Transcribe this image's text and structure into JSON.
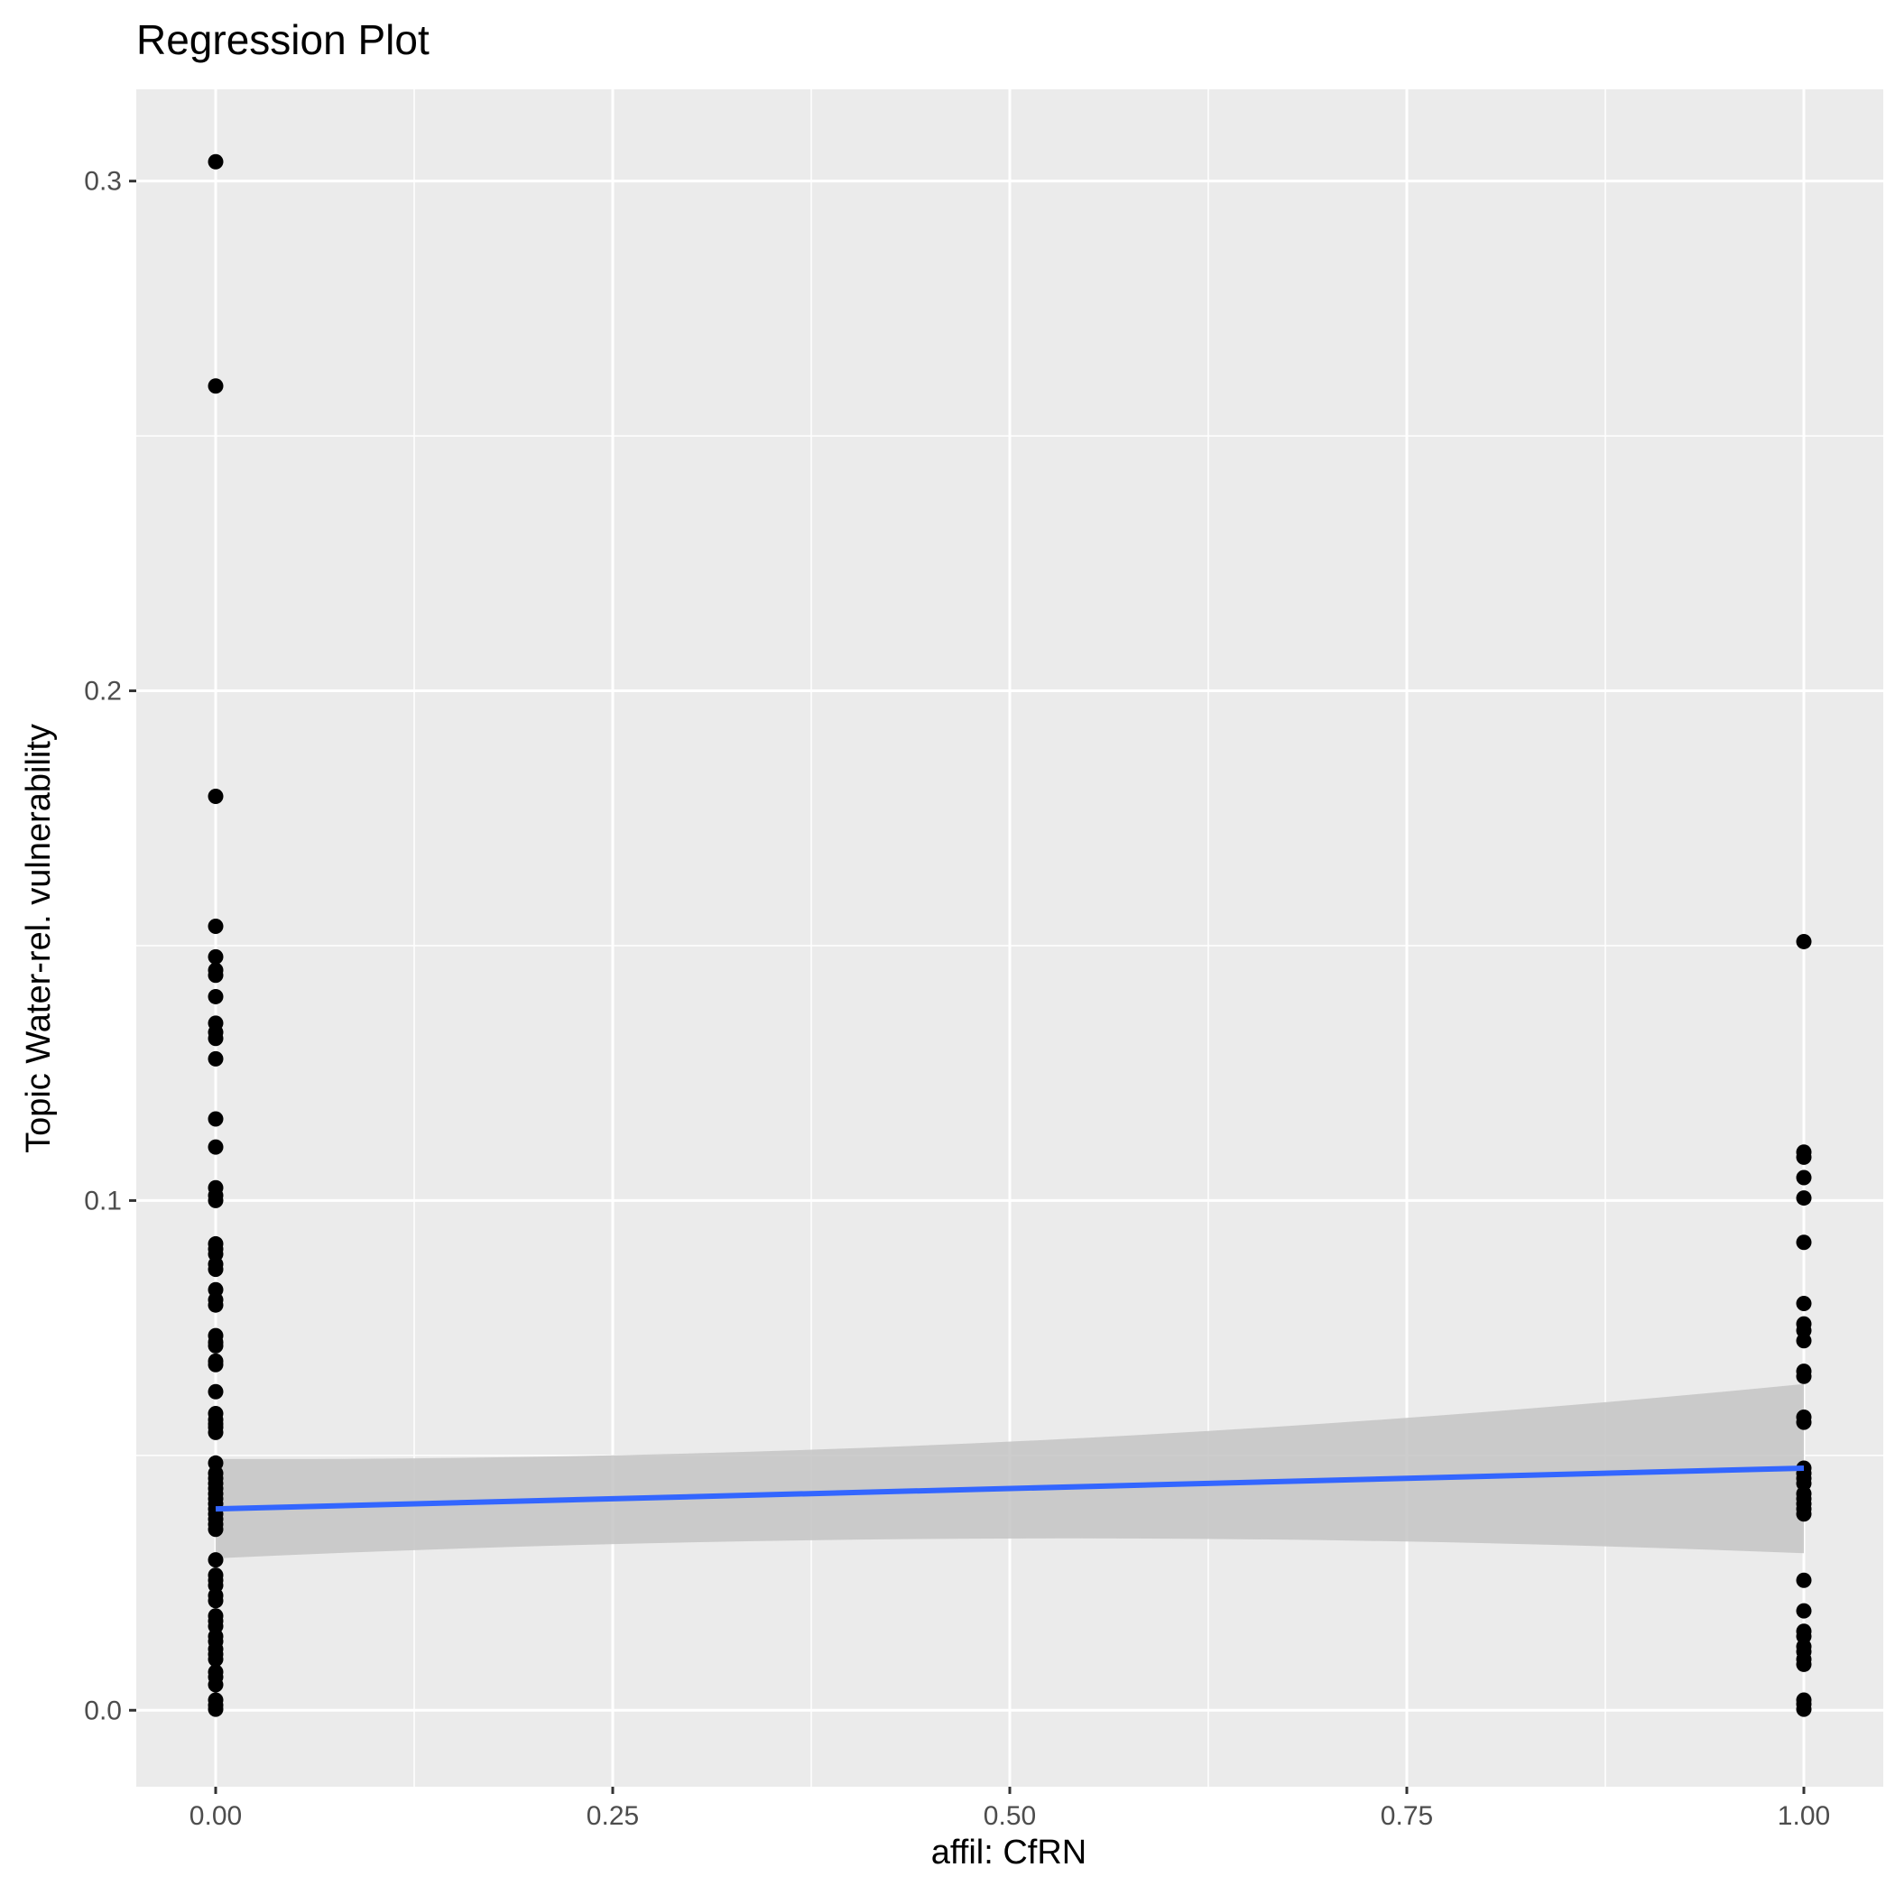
{
  "chart_data": {
    "type": "scatter",
    "title": "Regression Plot",
    "xlabel": "affil: CfRN",
    "ylabel": "Topic Water-rel. vulnerability",
    "xlim": [
      -0.05,
      1.05
    ],
    "ylim": [
      -0.015,
      0.318
    ],
    "x_ticks": [
      0.0,
      0.25,
      0.5,
      0.75,
      1.0
    ],
    "x_tick_labels": [
      "0.00",
      "0.25",
      "0.50",
      "0.75",
      "1.00"
    ],
    "y_ticks": [
      0.0,
      0.1,
      0.2,
      0.3
    ],
    "y_tick_labels": [
      "0.0",
      "0.1",
      "0.2",
      "0.3"
    ],
    "grid": true,
    "colors": {
      "panel_background": "#ebebeb",
      "grid_line": "#ffffff",
      "points": "#000000",
      "regression_line": "#3366ff",
      "confidence_band": "#c4c4c4"
    },
    "series": [
      {
        "x": 0.0,
        "values": [
          0.3038,
          0.2598,
          0.1793,
          0.1538,
          0.1478,
          0.1452,
          0.1442,
          0.14,
          0.1348,
          0.133,
          0.1318,
          0.1278,
          0.116,
          0.1105,
          0.1025,
          0.101,
          0.1,
          0.0915,
          0.0905,
          0.0895,
          0.0875,
          0.0865,
          0.0825,
          0.0805,
          0.0795,
          0.0735,
          0.0722,
          0.0715,
          0.0685,
          0.0678,
          0.0625,
          0.0582,
          0.057,
          0.0562,
          0.0555,
          0.0545,
          0.0485,
          0.0465,
          0.0455,
          0.0445,
          0.0435,
          0.0425,
          0.0415,
          0.0405,
          0.0395,
          0.0385,
          0.0375,
          0.0365,
          0.0355,
          0.0295,
          0.0265,
          0.0255,
          0.0245,
          0.0225,
          0.0215,
          0.0185,
          0.0175,
          0.0165,
          0.0145,
          0.0135,
          0.012,
          0.011,
          0.01,
          0.0075,
          0.0065,
          0.005,
          0.002,
          0.001,
          0.0002
        ]
      },
      {
        "x": 1.0,
        "values": [
          0.1508,
          0.1095,
          0.1085,
          0.1045,
          0.1005,
          0.0918,
          0.0798,
          0.0758,
          0.0745,
          0.0725,
          0.0665,
          0.0655,
          0.0575,
          0.0565,
          0.0475,
          0.0465,
          0.0455,
          0.0445,
          0.0425,
          0.0415,
          0.0405,
          0.0395,
          0.0385,
          0.0255,
          0.0195,
          0.0155,
          0.0145,
          0.0125,
          0.0115,
          0.01,
          0.009,
          0.002,
          0.0012,
          0.0002
        ]
      }
    ],
    "regression": {
      "x": [
        0.0,
        1.0
      ],
      "y": [
        0.0395,
        0.0475
      ],
      "ci_lower": [
        0.0298,
        0.0308
      ],
      "ci_upper": [
        0.0493,
        0.064
      ],
      "ci_upper_mid": 0.0527,
      "ci_lower_mid": 0.0337
    }
  }
}
